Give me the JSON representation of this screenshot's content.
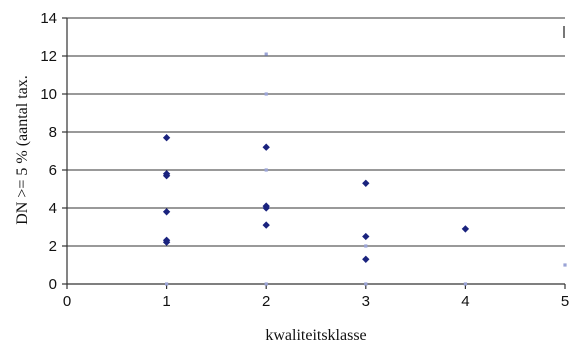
{
  "chart_data": {
    "type": "scatter",
    "xlabel": "kwaliteitsklasse",
    "ylabel": "DN  >= 5 % (aantal tax.",
    "xlim": [
      0,
      5
    ],
    "ylim": [
      0,
      14
    ],
    "x_ticks": [
      "0",
      "1",
      "2",
      "3",
      "4",
      "5"
    ],
    "y_ticks": [
      "0",
      "2",
      "4",
      "6",
      "8",
      "10",
      "12",
      "14"
    ],
    "grid": "horizontal",
    "series": [
      {
        "color": "#1a237e",
        "points": [
          {
            "x": 1,
            "y": 7.7
          },
          {
            "x": 1,
            "y": 5.8
          },
          {
            "x": 1,
            "y": 5.7
          },
          {
            "x": 1,
            "y": 3.8
          },
          {
            "x": 1,
            "y": 2.3
          },
          {
            "x": 1,
            "y": 2.2
          },
          {
            "x": 2,
            "y": 7.2
          },
          {
            "x": 2,
            "y": 4.1
          },
          {
            "x": 2,
            "y": 4.0
          },
          {
            "x": 2,
            "y": 3.1
          },
          {
            "x": 3,
            "y": 5.3
          },
          {
            "x": 3,
            "y": 2.5
          },
          {
            "x": 3,
            "y": 1.3
          },
          {
            "x": 4,
            "y": 2.9
          }
        ]
      },
      {
        "color": "#9aa3d6",
        "points": [
          {
            "x": 1,
            "y": 0.0
          },
          {
            "x": 2,
            "y": 12.1
          },
          {
            "x": 2,
            "y": 10.0
          },
          {
            "x": 2,
            "y": 6.0
          },
          {
            "x": 2,
            "y": 0.0
          },
          {
            "x": 3,
            "y": 2.0
          },
          {
            "x": 3,
            "y": 0.0
          },
          {
            "x": 4,
            "y": 0.0
          },
          {
            "x": 5,
            "y": 1.0
          }
        ]
      }
    ]
  }
}
